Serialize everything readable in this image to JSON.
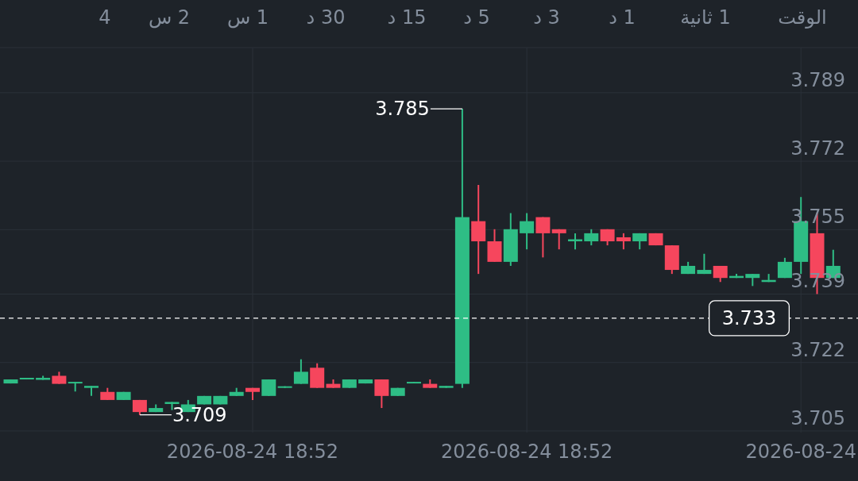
{
  "chart_data": {
    "type": "candlestick",
    "categories": [
      null,
      null,
      null,
      null,
      null,
      null,
      null,
      null,
      null,
      null,
      null,
      null,
      null,
      null,
      null,
      "2026-08-24 18:52",
      null,
      null,
      null,
      null,
      null,
      null,
      null,
      null,
      null,
      null,
      null,
      null,
      null,
      null,
      null,
      null,
      "2026-08-24 18:52",
      null,
      null,
      null,
      null,
      null,
      null,
      null,
      null,
      null,
      null,
      null,
      null,
      null,
      null,
      null,
      null,
      "2026-08-24",
      null,
      null
    ],
    "ohlc": [
      [
        3.7168,
        3.7178,
        3.7168,
        3.7178
      ],
      [
        3.7178,
        3.7182,
        3.7178,
        3.7182
      ],
      [
        3.7177,
        3.7187,
        3.7177,
        3.7182
      ],
      [
        3.7187,
        3.7197,
        3.7167,
        3.7167
      ],
      [
        3.7168,
        3.7172,
        3.7148,
        3.7172
      ],
      [
        3.7157,
        3.7162,
        3.7137,
        3.7162
      ],
      [
        3.7147,
        3.7157,
        3.7127,
        3.7127
      ],
      [
        3.7127,
        3.7147,
        3.7127,
        3.7147
      ],
      [
        3.7127,
        3.7127,
        3.709,
        3.7097
      ],
      [
        3.7097,
        3.7116,
        3.7097,
        3.7107
      ],
      [
        3.7117,
        3.7122,
        3.7102,
        3.7122
      ],
      [
        3.7097,
        3.7127,
        3.7097,
        3.7116
      ],
      [
        3.7116,
        3.7137,
        3.7116,
        3.7137
      ],
      [
        3.7116,
        3.7137,
        3.7116,
        3.7137
      ],
      [
        3.7137,
        3.7157,
        3.7137,
        3.7147
      ],
      [
        3.7157,
        3.7157,
        3.7127,
        3.7147
      ],
      [
        3.7137,
        3.7178,
        3.7137,
        3.7178
      ],
      [
        3.7157,
        3.7161,
        3.7157,
        3.7161
      ],
      [
        3.7167,
        3.7228,
        3.7167,
        3.7197
      ],
      [
        3.7207,
        3.7218,
        3.7157,
        3.7157
      ],
      [
        3.7167,
        3.7178,
        3.7157,
        3.7157
      ],
      [
        3.7157,
        3.7178,
        3.7157,
        3.7178
      ],
      [
        3.7168,
        3.7178,
        3.7168,
        3.7178
      ],
      [
        3.7178,
        3.7178,
        3.7107,
        3.7137
      ],
      [
        3.7137,
        3.7157,
        3.7137,
        3.7157
      ],
      [
        3.7168,
        3.7172,
        3.7168,
        3.7172
      ],
      [
        3.7167,
        3.7178,
        3.7157,
        3.7157
      ],
      [
        3.7157,
        3.7162,
        3.7157,
        3.7162
      ],
      [
        3.7167,
        3.785,
        3.7157,
        3.7581
      ],
      [
        3.7571,
        3.7661,
        3.744,
        3.7521
      ],
      [
        3.7521,
        3.7551,
        3.747,
        3.747
      ],
      [
        3.747,
        3.7591,
        3.746,
        3.7551
      ],
      [
        3.7541,
        3.7591,
        3.7501,
        3.7571
      ],
      [
        3.7581,
        3.7581,
        3.7481,
        3.7541
      ],
      [
        3.7551,
        3.7551,
        3.7501,
        3.7541
      ],
      [
        3.7521,
        3.7541,
        3.7501,
        3.7526
      ],
      [
        3.7521,
        3.7551,
        3.7511,
        3.7541
      ],
      [
        3.7551,
        3.7551,
        3.7511,
        3.7521
      ],
      [
        3.7531,
        3.7541,
        3.7501,
        3.7521
      ],
      [
        3.7521,
        3.7541,
        3.7501,
        3.7541
      ],
      [
        3.7541,
        3.7541,
        3.7511,
        3.7511
      ],
      [
        3.7511,
        3.7511,
        3.744,
        3.745
      ],
      [
        3.744,
        3.747,
        3.744,
        3.746
      ],
      [
        3.744,
        3.749,
        3.744,
        3.745
      ],
      [
        3.746,
        3.746,
        3.742,
        3.743
      ],
      [
        3.743,
        3.744,
        3.743,
        3.7435
      ],
      [
        3.743,
        3.744,
        3.741,
        3.744
      ],
      [
        3.742,
        3.744,
        3.742,
        3.7425
      ],
      [
        3.743,
        3.748,
        3.743,
        3.747
      ],
      [
        3.747,
        3.7631,
        3.744,
        3.7571
      ],
      [
        3.7541,
        3.7592,
        3.739,
        3.743
      ],
      [
        3.743,
        3.75,
        3.743,
        3.746
      ]
    ],
    "colors": [
      "#2ebd85",
      "#2ebd85",
      "#2ebd85",
      "#f6465d",
      "#2ebd85",
      "#2ebd85",
      "#f6465d",
      "#2ebd85",
      "#f6465d",
      "#2ebd85",
      "#2ebd85",
      "#2ebd85",
      "#2ebd85",
      "#2ebd85",
      "#2ebd85",
      "#f6465d",
      "#2ebd85",
      "#2ebd85",
      "#2ebd85",
      "#f6465d",
      "#f6465d",
      "#2ebd85",
      "#2ebd85",
      "#f6465d",
      "#2ebd85",
      "#2ebd85",
      "#f6465d",
      "#2ebd85",
      "#2ebd85",
      "#f6465d",
      "#f6465d",
      "#2ebd85",
      "#2ebd85",
      "#f6465d",
      "#f6465d",
      "#2ebd85",
      "#2ebd85",
      "#f6465d",
      "#f6465d",
      "#2ebd85",
      "#f6465d",
      "#f6465d",
      "#2ebd85",
      "#2ebd85",
      "#f6465d",
      "#2ebd85",
      "#2ebd85",
      "#2ebd85",
      "#2ebd85",
      "#2ebd85",
      "#f6465d",
      "#2ebd85"
    ],
    "ylim": [
      3.7046,
      3.8002
    ],
    "yticks": [
      3.705,
      3.722,
      3.739,
      3.755,
      3.772,
      3.789
    ],
    "grid": true,
    "ref_lines": [
      {
        "axis": "y",
        "value": 3.733,
        "label": "3.733",
        "color": "#ffffff",
        "line_style": "dashed"
      }
    ],
    "annotations": [
      "الوقت",
      "1 ثانية",
      "1 د",
      "3 د",
      "5 د",
      "15 د",
      "30 د",
      "1 س",
      "2 س",
      "4",
      "3.785",
      "3.709"
    ]
  }
}
